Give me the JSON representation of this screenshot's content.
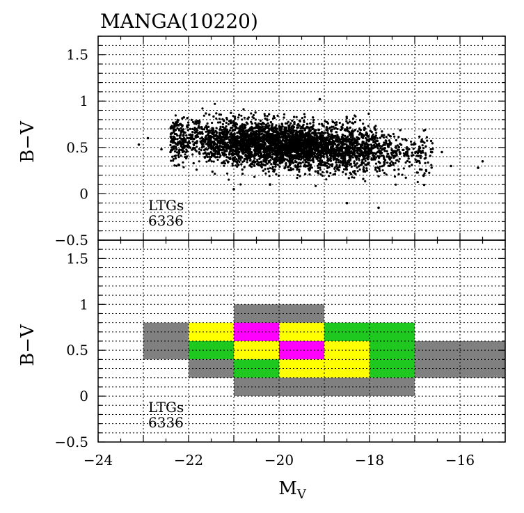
{
  "chart_data": [
    {
      "type": "scatter",
      "title": "MANGA(10220)",
      "xlabel": "",
      "ylabel": "B−V",
      "xlim": [
        -24,
        -15
      ],
      "ylim": [
        -0.5,
        1.7
      ],
      "x_ticks": [
        -24,
        -22,
        -20,
        -18,
        -16
      ],
      "y_ticks": [
        -0.5,
        0,
        0.5,
        1,
        1.5
      ],
      "y_tick_labels": [
        "−0.5",
        "0",
        "0.5",
        "1",
        "1.5"
      ],
      "grid": true,
      "annotation": [
        "LTGs",
        "6336"
      ],
      "n_points": 6336,
      "density_core": {
        "x_center": -19.8,
        "y_center": 0.52,
        "x_spread": 1.5,
        "y_spread": 0.12
      },
      "outliers": [
        {
          "x": -23.1,
          "y": 0.53
        },
        {
          "x": -22.9,
          "y": 0.6
        },
        {
          "x": -22.6,
          "y": 0.48
        },
        {
          "x": -22.4,
          "y": 0.45
        },
        {
          "x": -21.0,
          "y": 0.05
        },
        {
          "x": -20.2,
          "y": 0.1
        },
        {
          "x": -19.1,
          "y": 1.02
        },
        {
          "x": -18.5,
          "y": -0.1
        },
        {
          "x": -17.8,
          "y": -0.15
        },
        {
          "x": -16.9,
          "y": 0.35
        },
        {
          "x": -16.4,
          "y": 0.45
        },
        {
          "x": -16.2,
          "y": 0.3
        },
        {
          "x": -15.6,
          "y": 0.28
        },
        {
          "x": -15.5,
          "y": 0.35
        },
        {
          "x": -16.8,
          "y": 0.2
        }
      ]
    },
    {
      "type": "heatmap",
      "xlabel": "M_V",
      "xlabel_main": "M",
      "xlabel_sub": "V",
      "ylabel": "B−V",
      "xlim": [
        -24,
        -15
      ],
      "ylim": [
        -0.5,
        1.7
      ],
      "x_ticks": [
        -24,
        -22,
        -20,
        -18,
        -16
      ],
      "x_tick_labels": [
        "−24",
        "−22",
        "−20",
        "−18",
        "−16"
      ],
      "y_ticks": [
        -0.5,
        0,
        0.5,
        1,
        1.5
      ],
      "y_tick_labels": [
        "−0.5",
        "0",
        "0.5",
        "1",
        "1.5"
      ],
      "grid": true,
      "annotation": [
        "LTGs",
        "6336"
      ],
      "bin_width": 1,
      "bin_height": 0.2,
      "colors": {
        "gray": "#808080",
        "green": "#1ec81e",
        "yellow": "#ffff00",
        "magenta": "#ff00ff"
      },
      "cells": [
        {
          "x0": -21,
          "y0": 0.8,
          "color": "gray"
        },
        {
          "x0": -20,
          "y0": 0.8,
          "color": "gray"
        },
        {
          "x0": -23,
          "y0": 0.6,
          "color": "gray"
        },
        {
          "x0": -22,
          "y0": 0.6,
          "color": "yellow"
        },
        {
          "x0": -21,
          "y0": 0.6,
          "color": "magenta"
        },
        {
          "x0": -20,
          "y0": 0.6,
          "color": "yellow"
        },
        {
          "x0": -19,
          "y0": 0.6,
          "color": "green"
        },
        {
          "x0": -18,
          "y0": 0.6,
          "color": "green"
        },
        {
          "x0": -23,
          "y0": 0.4,
          "color": "gray"
        },
        {
          "x0": -22,
          "y0": 0.4,
          "color": "green"
        },
        {
          "x0": -21,
          "y0": 0.4,
          "color": "yellow"
        },
        {
          "x0": -20,
          "y0": 0.4,
          "color": "magenta"
        },
        {
          "x0": -19,
          "y0": 0.4,
          "color": "yellow"
        },
        {
          "x0": -18,
          "y0": 0.4,
          "color": "green"
        },
        {
          "x0": -17,
          "y0": 0.4,
          "color": "gray"
        },
        {
          "x0": -16,
          "y0": 0.4,
          "color": "gray"
        },
        {
          "x0": -22,
          "y0": 0.2,
          "color": "gray"
        },
        {
          "x0": -21,
          "y0": 0.2,
          "color": "green"
        },
        {
          "x0": -20,
          "y0": 0.2,
          "color": "yellow"
        },
        {
          "x0": -19,
          "y0": 0.2,
          "color": "yellow"
        },
        {
          "x0": -18,
          "y0": 0.2,
          "color": "green"
        },
        {
          "x0": -17,
          "y0": 0.2,
          "color": "gray"
        },
        {
          "x0": -16,
          "y0": 0.2,
          "color": "gray"
        },
        {
          "x0": -21,
          "y0": 0.0,
          "color": "gray"
        },
        {
          "x0": -20,
          "y0": 0.0,
          "color": "gray"
        },
        {
          "x0": -19,
          "y0": 0.0,
          "color": "gray"
        },
        {
          "x0": -18,
          "y0": 0.0,
          "color": "gray"
        }
      ]
    }
  ]
}
